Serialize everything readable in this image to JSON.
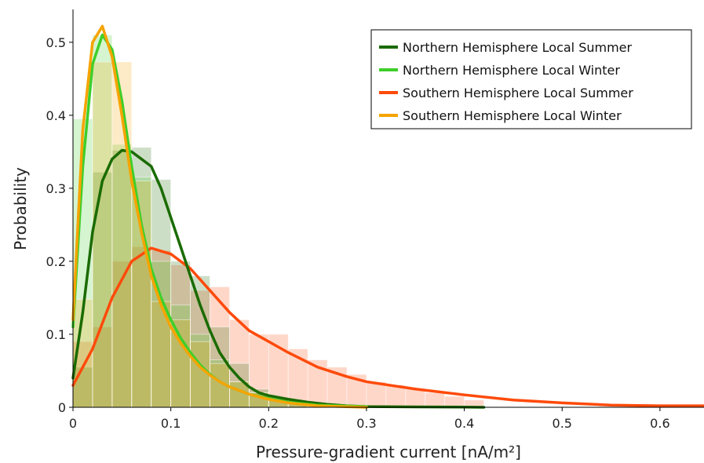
{
  "chart_data": {
    "type": "area",
    "xlabel": "Pressure-gradient current [nA/m²]",
    "ylabel": "Probability",
    "xlim": [
      0,
      0.645
    ],
    "ylim": [
      0,
      0.545
    ],
    "xticks": [
      0,
      0.1,
      0.2,
      0.3,
      0.4,
      0.5,
      0.6
    ],
    "xtick_labels": [
      "0",
      "0.1",
      "0.2",
      "0.3",
      "0.4",
      "0.5",
      "0.6"
    ],
    "yticks": [
      0,
      0.1,
      0.2,
      0.3,
      0.4,
      0.5
    ],
    "ytick_labels": [
      "0",
      "0.1",
      "0.2",
      "0.3",
      "0.4",
      "0.5"
    ],
    "grid": false,
    "legend_position": "top-right",
    "series": [
      {
        "name": "Northern Hemisphere Local Summer",
        "color": "#1a6b00",
        "curve_x": [
          0,
          0.01,
          0.02,
          0.03,
          0.04,
          0.05,
          0.06,
          0.07,
          0.08,
          0.09,
          0.1,
          0.11,
          0.12,
          0.13,
          0.14,
          0.15,
          0.16,
          0.17,
          0.18,
          0.19,
          0.2,
          0.22,
          0.24,
          0.26,
          0.28,
          0.3,
          0.35,
          0.4,
          0.42
        ],
        "curve_y": [
          0.04,
          0.13,
          0.24,
          0.31,
          0.34,
          0.352,
          0.35,
          0.34,
          0.33,
          0.3,
          0.26,
          0.22,
          0.18,
          0.14,
          0.105,
          0.075,
          0.055,
          0.04,
          0.028,
          0.02,
          0.016,
          0.011,
          0.007,
          0.004,
          0.002,
          0.001,
          0.0005,
          0.0002,
          0.0
        ],
        "bins_x_start": [
          0,
          0.02,
          0.04,
          0.06,
          0.08,
          0.1,
          0.12,
          0.14,
          0.16,
          0.18,
          0.2,
          0.22,
          0.24,
          0.26
        ],
        "bin_width": 0.02,
        "bin_values": [
          0.055,
          0.322,
          0.352,
          0.356,
          0.312,
          0.2,
          0.18,
          0.11,
          0.06,
          0.025,
          0.012,
          0.008,
          0.005,
          0.002
        ]
      },
      {
        "name": "Northern Hemisphere Local Winter",
        "color": "#3ecf2a",
        "curve_x": [
          0,
          0.01,
          0.02,
          0.03,
          0.04,
          0.05,
          0.06,
          0.07,
          0.08,
          0.09,
          0.1,
          0.11,
          0.12,
          0.13,
          0.14,
          0.15,
          0.16,
          0.18,
          0.2,
          0.22,
          0.25,
          0.3
        ],
        "curve_y": [
          0.11,
          0.33,
          0.47,
          0.51,
          0.49,
          0.42,
          0.33,
          0.25,
          0.19,
          0.15,
          0.12,
          0.095,
          0.075,
          0.058,
          0.045,
          0.035,
          0.028,
          0.018,
          0.012,
          0.007,
          0.003,
          0.001
        ],
        "bins_x_start": [
          0,
          0.02,
          0.04,
          0.06,
          0.08,
          0.1,
          0.12,
          0.14,
          0.16,
          0.18,
          0.2,
          0.22
        ],
        "bin_width": 0.02,
        "bin_values": [
          0.395,
          0.51,
          0.36,
          0.315,
          0.2,
          0.14,
          0.1,
          0.065,
          0.035,
          0.02,
          0.012,
          0.005
        ]
      },
      {
        "name": "Southern Hemisphere Local Summer",
        "color": "#ff4a0a",
        "curve_x": [
          0,
          0.02,
          0.04,
          0.06,
          0.08,
          0.1,
          0.12,
          0.14,
          0.16,
          0.18,
          0.2,
          0.22,
          0.25,
          0.28,
          0.3,
          0.35,
          0.4,
          0.45,
          0.5,
          0.55,
          0.6,
          0.645
        ],
        "curve_y": [
          0.03,
          0.08,
          0.15,
          0.2,
          0.218,
          0.21,
          0.19,
          0.16,
          0.13,
          0.105,
          0.09,
          0.075,
          0.055,
          0.042,
          0.035,
          0.025,
          0.017,
          0.01,
          0.006,
          0.003,
          0.002,
          0.002
        ],
        "bins_x_start": [
          0,
          0.02,
          0.04,
          0.06,
          0.08,
          0.1,
          0.12,
          0.14,
          0.16,
          0.18,
          0.2,
          0.22,
          0.24,
          0.26,
          0.28,
          0.3,
          0.32,
          0.34,
          0.36,
          0.38,
          0.4
        ],
        "bin_width": 0.02,
        "bin_values": [
          0.09,
          0.11,
          0.2,
          0.22,
          0.215,
          0.195,
          0.16,
          0.165,
          0.12,
          0.1,
          0.1,
          0.08,
          0.065,
          0.055,
          0.045,
          0.035,
          0.03,
          0.025,
          0.02,
          0.015,
          0.01
        ]
      },
      {
        "name": "Southern Hemisphere Local Winter",
        "color": "#f5a400",
        "curve_x": [
          0,
          0.01,
          0.02,
          0.03,
          0.04,
          0.05,
          0.06,
          0.07,
          0.08,
          0.09,
          0.1,
          0.11,
          0.12,
          0.13,
          0.14,
          0.15,
          0.16,
          0.18,
          0.2,
          0.22,
          0.25,
          0.3
        ],
        "curve_y": [
          0.12,
          0.38,
          0.5,
          0.522,
          0.48,
          0.4,
          0.31,
          0.24,
          0.18,
          0.14,
          0.11,
          0.088,
          0.07,
          0.055,
          0.044,
          0.035,
          0.028,
          0.018,
          0.011,
          0.006,
          0.002,
          0.0
        ],
        "bins_x_start": [
          0,
          0.02,
          0.04,
          0.06,
          0.08,
          0.1,
          0.12,
          0.14,
          0.16,
          0.18,
          0.2,
          0.22
        ],
        "bin_width": 0.02,
        "bin_values": [
          0.148,
          0.473,
          0.473,
          0.31,
          0.145,
          0.12,
          0.09,
          0.06,
          0.035,
          0.02,
          0.012,
          0.005
        ]
      }
    ]
  }
}
